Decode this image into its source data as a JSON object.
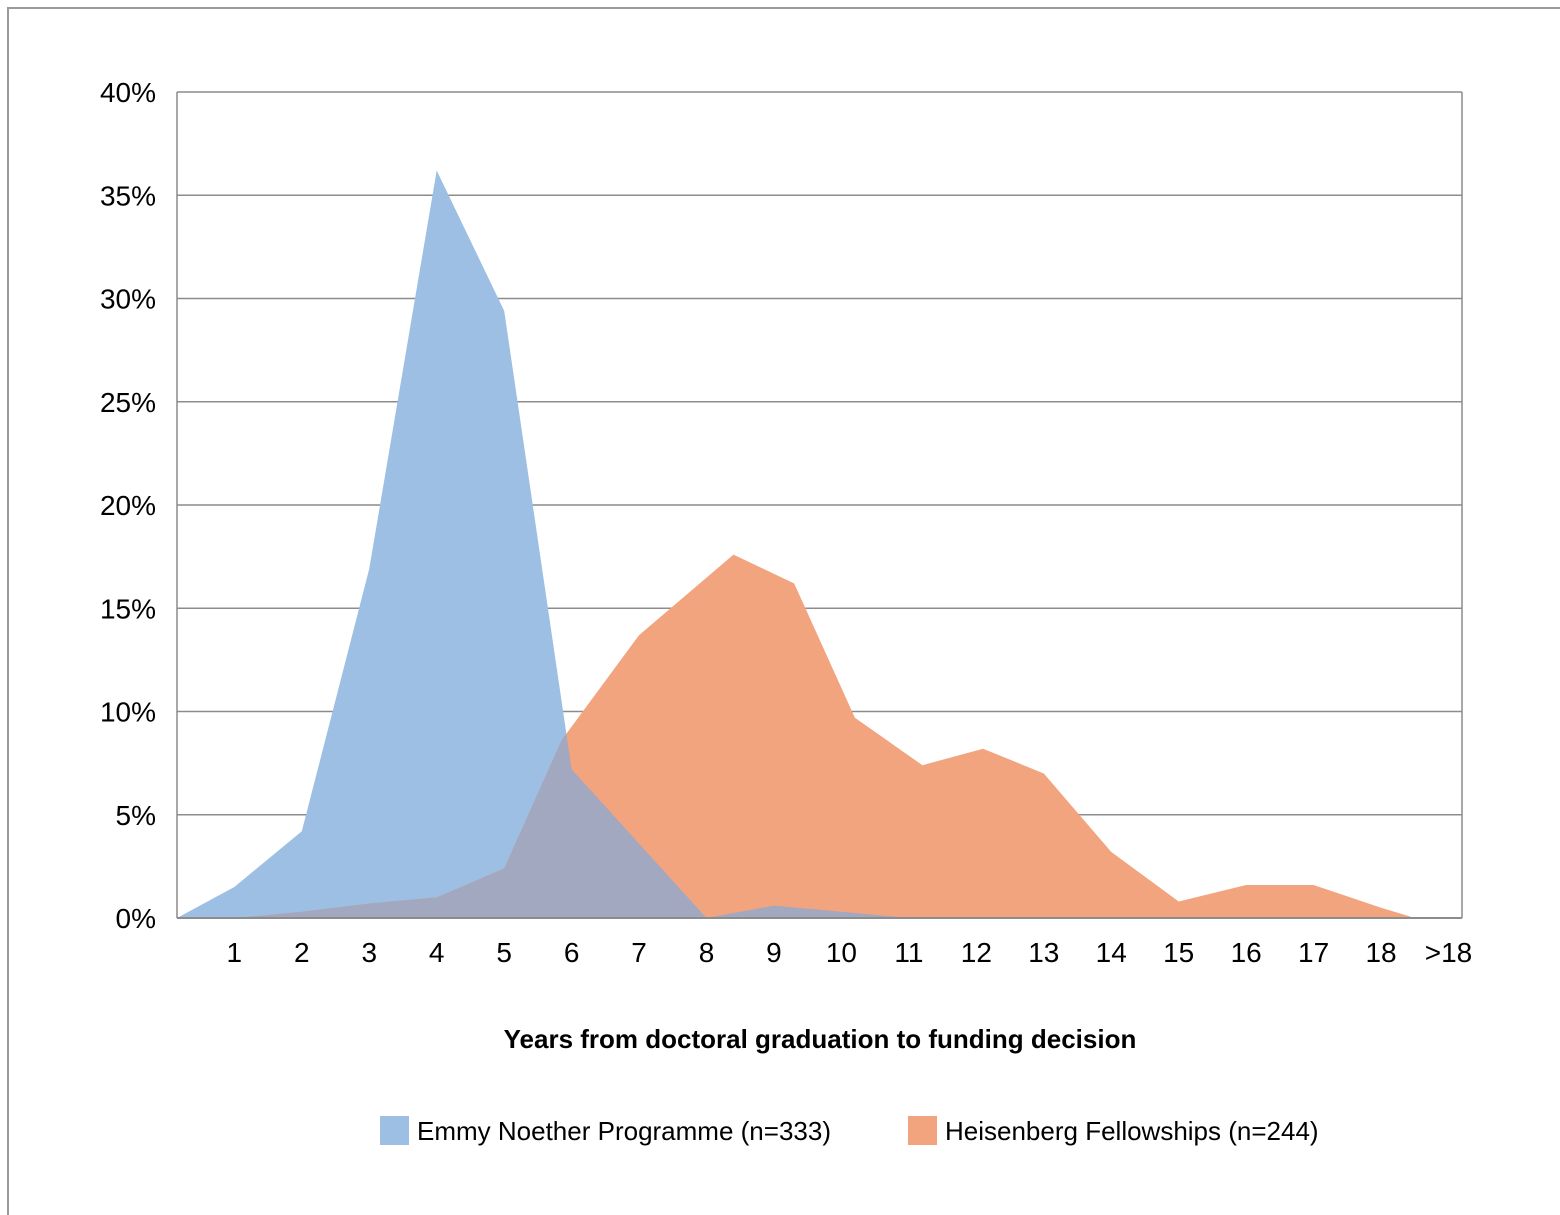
{
  "chart_data": {
    "type": "area",
    "xlabel": "Years from doctoral graduation to funding decision",
    "ylabel": "",
    "categories": [
      "1",
      "2",
      "3",
      "4",
      "5",
      "6",
      "7",
      "8",
      "9",
      "10",
      "11",
      "12",
      "13",
      "14",
      "15",
      "16",
      "17",
      "18",
      ">18"
    ],
    "y_ticks": [
      "0%",
      "5%",
      "10%",
      "15%",
      "20%",
      "25%",
      "30%",
      "35%",
      "40%"
    ],
    "ylim": [
      0,
      40
    ],
    "grid": true,
    "legend_position": "bottom",
    "series": [
      {
        "name": "Emmy Noether Programme (n=333)",
        "color": "#9dbfe3",
        "x": [
          0.15,
          1,
          2,
          3,
          4,
          5,
          6,
          7,
          8,
          9,
          10,
          11,
          12,
          13,
          14,
          15,
          16,
          17,
          18,
          18.5
        ],
        "values": [
          0,
          1.5,
          4.2,
          16.9,
          36.2,
          29.4,
          7.2,
          3.6,
          0,
          0.6,
          0.3,
          0,
          0,
          0,
          0,
          0,
          0,
          0,
          0,
          0
        ]
      },
      {
        "name": "Heisenberg Fellowships (n=244)",
        "color": "#f2a47f",
        "x": [
          0.15,
          1,
          2,
          3,
          4,
          5,
          5.85,
          7,
          8.4,
          9.3,
          10.2,
          11.2,
          12.1,
          13,
          14,
          15,
          16,
          17,
          18,
          18.5
        ],
        "values": [
          0,
          0,
          0.3,
          0.7,
          1.0,
          2.4,
          8.6,
          13.7,
          17.6,
          16.2,
          9.7,
          7.4,
          8.2,
          7.0,
          3.2,
          0.8,
          1.6,
          1.6,
          0.5,
          0
        ]
      }
    ]
  }
}
